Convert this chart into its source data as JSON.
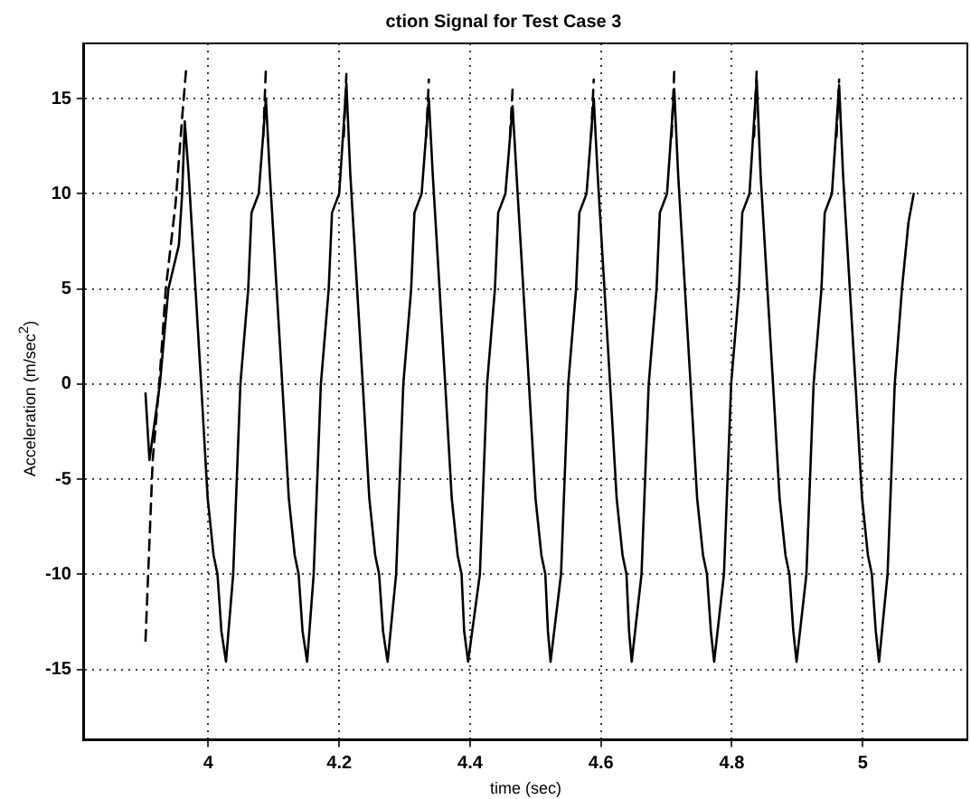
{
  "chart_data": {
    "type": "line",
    "title": "ction Signal for Test Case 3",
    "xlabel": "time (sec)",
    "ylabel": "Acceleration (m/sec$^{2}$)",
    "xlim": [
      3.81,
      5.16
    ],
    "xticks": [
      4,
      4.2,
      4.4,
      4.6,
      4.8,
      5
    ],
    "ylim": [
      -18.7,
      17.9
    ],
    "yticks": [
      -15,
      -10,
      -5,
      0,
      5,
      10,
      15
    ],
    "grid": true,
    "legend": false,
    "marker": "none",
    "series": [
      {
        "color": "#000000",
        "line_style": "solid",
        "x": [
          3.904,
          3.91,
          3.926,
          3.939,
          3.955,
          3.96,
          3.964,
          3.97,
          3.989,
          3.999,
          4.008,
          4.014,
          4.02,
          4.027,
          4.038,
          4.049,
          4.061,
          4.066,
          4.077,
          4.088,
          4.094,
          4.113,
          4.123,
          4.132,
          4.138,
          4.144,
          4.151,
          4.161,
          4.172,
          4.184,
          4.189,
          4.2,
          4.211,
          4.217,
          4.236,
          4.246,
          4.255,
          4.261,
          4.267,
          4.274,
          4.287,
          4.298,
          4.31,
          4.315,
          4.326,
          4.337,
          4.343,
          4.362,
          4.372,
          4.381,
          4.387,
          4.391,
          4.397,
          4.415,
          4.426,
          4.438,
          4.443,
          4.454,
          4.465,
          4.471,
          4.49,
          4.5,
          4.509,
          4.515,
          4.519,
          4.523,
          4.539,
          4.55,
          4.562,
          4.567,
          4.578,
          4.589,
          4.595,
          4.614,
          4.624,
          4.633,
          4.639,
          4.643,
          4.647,
          4.662,
          4.673,
          4.685,
          4.69,
          4.701,
          4.712,
          4.718,
          4.737,
          4.747,
          4.756,
          4.762,
          4.768,
          4.773,
          4.788,
          4.799,
          4.811,
          4.816,
          4.827,
          4.838,
          4.844,
          4.863,
          4.873,
          4.882,
          4.888,
          4.894,
          4.899,
          4.914,
          4.925,
          4.937,
          4.942,
          4.953,
          4.964,
          4.97,
          4.989,
          4.999,
          5.008,
          5.014,
          5.02,
          5.025,
          5.038,
          5.049,
          5.06,
          5.07,
          5.078
        ],
        "values": [
          -0.5,
          -4,
          0,
          5,
          7.3,
          10,
          13.8,
          11,
          0,
          -6,
          -9,
          -10,
          -13,
          -14.6,
          -10,
          0,
          5,
          9,
          10,
          15,
          11,
          0,
          -6,
          -9,
          -10,
          -13,
          -14.6,
          -10,
          0,
          5,
          9,
          10,
          15.8,
          11,
          0,
          -6,
          -9,
          -10,
          -13,
          -14.6,
          -10,
          0,
          5,
          9,
          10,
          15,
          11,
          0,
          -6,
          -9,
          -10,
          -13,
          -14.6,
          -10,
          0,
          5,
          9,
          10,
          14.6,
          11,
          0,
          -6,
          -9,
          -10,
          -13,
          -14.6,
          -10,
          0,
          5,
          9,
          10,
          15,
          11,
          0,
          -6,
          -9,
          -10,
          -13,
          -14.6,
          -10,
          0,
          5,
          9,
          10,
          15.5,
          11,
          0,
          -6,
          -9,
          -10,
          -13,
          -14.6,
          -10,
          0,
          5,
          9,
          10,
          16,
          11,
          0,
          -6,
          -9,
          -10,
          -13,
          -14.6,
          -10,
          0,
          5,
          9,
          10,
          15.7,
          11,
          0,
          -6,
          -9,
          -10,
          -13,
          -14.6,
          -10,
          0,
          5,
          8.5,
          10
        ]
      },
      {
        "color": "#000000",
        "line_style": "dashed",
        "x": [
          3.904,
          3.915,
          3.925,
          3.935,
          3.95,
          3.96,
          3.966,
          3.97,
          4.084,
          4.088,
          4.09,
          4.207,
          4.211,
          4.213,
          4.333,
          4.337,
          4.339,
          4.461,
          4.465,
          4.467,
          4.585,
          4.589,
          4.591,
          4.708,
          4.712,
          4.714,
          4.834,
          4.838,
          4.84,
          4.96,
          4.964
        ],
        "values": [
          -13.5,
          -4,
          0,
          5,
          9.5,
          14,
          16.5,
          null,
          13,
          16.6,
          null,
          13,
          16.3,
          null,
          13,
          16,
          null,
          13,
          15.5,
          null,
          13,
          16,
          null,
          13,
          16.4,
          null,
          13,
          16.5,
          null,
          13,
          16
        ]
      }
    ]
  }
}
